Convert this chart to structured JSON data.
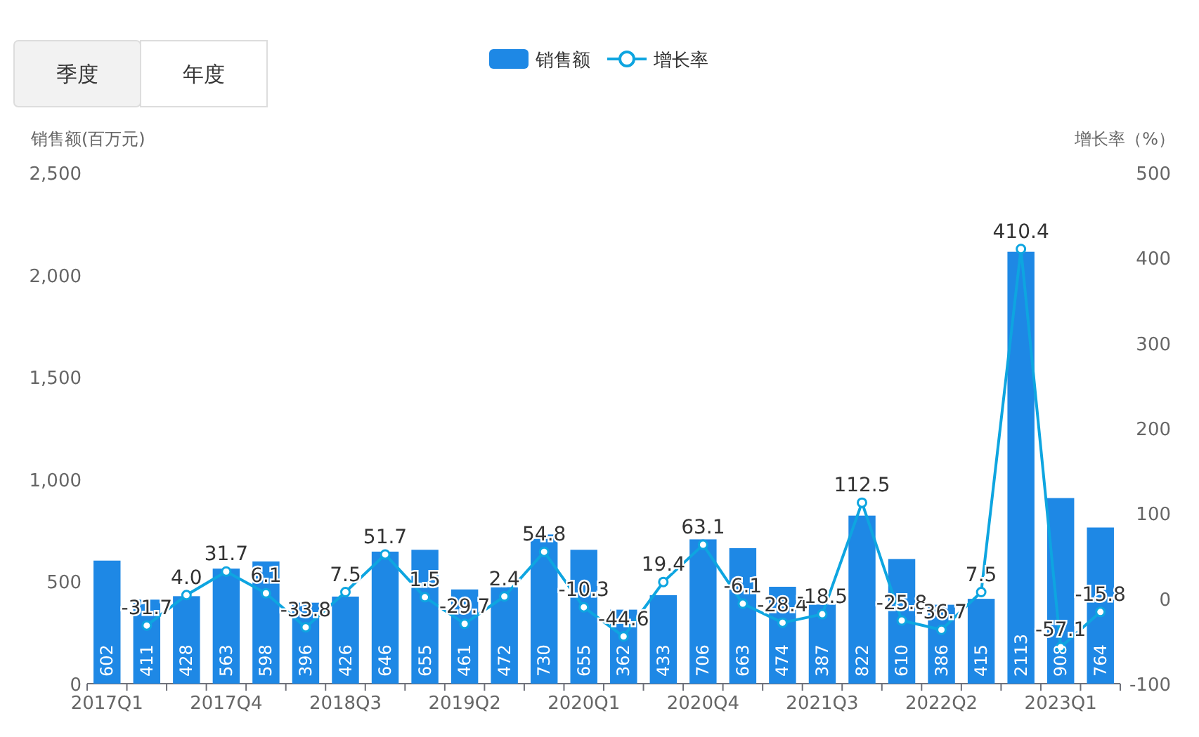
{
  "chart_data": {
    "type": "bar",
    "categories": [
      "2017Q1",
      null,
      null,
      "2017Q4",
      null,
      null,
      "2018Q3",
      null,
      null,
      "2019Q2",
      null,
      null,
      "2020Q1",
      null,
      null,
      "2020Q4",
      null,
      null,
      "2021Q3",
      null,
      null,
      "2022Q2",
      null,
      null,
      "2023Q1",
      null
    ],
    "series": [
      {
        "name": "销售额",
        "color": "#1e88e5",
        "values": [
          602,
          411,
          428,
          563,
          598,
          396,
          426,
          646,
          655,
          461,
          472,
          730,
          655,
          362,
          433,
          706,
          663,
          474,
          387,
          822,
          610,
          386,
          415,
          2113,
          908,
          764
        ]
      },
      {
        "name": "增长率",
        "type": "line",
        "axis": "y2",
        "color": "#0ea5e0",
        "values": [
          null,
          -31.7,
          4.0,
          31.7,
          6.1,
          -33.8,
          7.5,
          51.7,
          1.5,
          -29.7,
          2.4,
          54.8,
          -10.3,
          -44.6,
          19.4,
          63.1,
          -6.1,
          -28.4,
          -18.5,
          112.5,
          -25.8,
          -36.7,
          7.5,
          410.4,
          -57.1,
          -15.8
        ],
        "value_labels": [
          null,
          "-31.7",
          "4.0",
          "31.7",
          "6.1",
          "-33.8",
          "7.5",
          "51.7",
          "1.5",
          "-29.7",
          "2.4",
          "54.8",
          "-10.3",
          "-44.6",
          "19.4",
          "63.1",
          "-6.1",
          "-28.4",
          "-18.5",
          "112.5",
          "-25.8",
          "-36.7",
          "7.5",
          "410.4",
          "-57.1",
          "-15.8"
        ]
      }
    ],
    "ylabel": "销售额(百万元)",
    "y2label": "增长率（%）",
    "ylim": [
      0,
      2500
    ],
    "yticks": [
      0,
      500,
      {
        "value": 1000,
        "label": "1,000"
      },
      {
        "value": 1500,
        "label": "1,500"
      },
      {
        "value": 2000,
        "label": "2,000"
      },
      {
        "value": 2500,
        "label": "2,500"
      }
    ],
    "y2lim": [
      -100,
      500
    ],
    "y2ticks": [
      -100,
      0,
      100,
      200,
      300,
      400,
      500
    ],
    "data_labels": true,
    "legend": "top",
    "marker": "circle",
    "line_style": "solid",
    "annotations": [
      "季度",
      "年度"
    ]
  }
}
